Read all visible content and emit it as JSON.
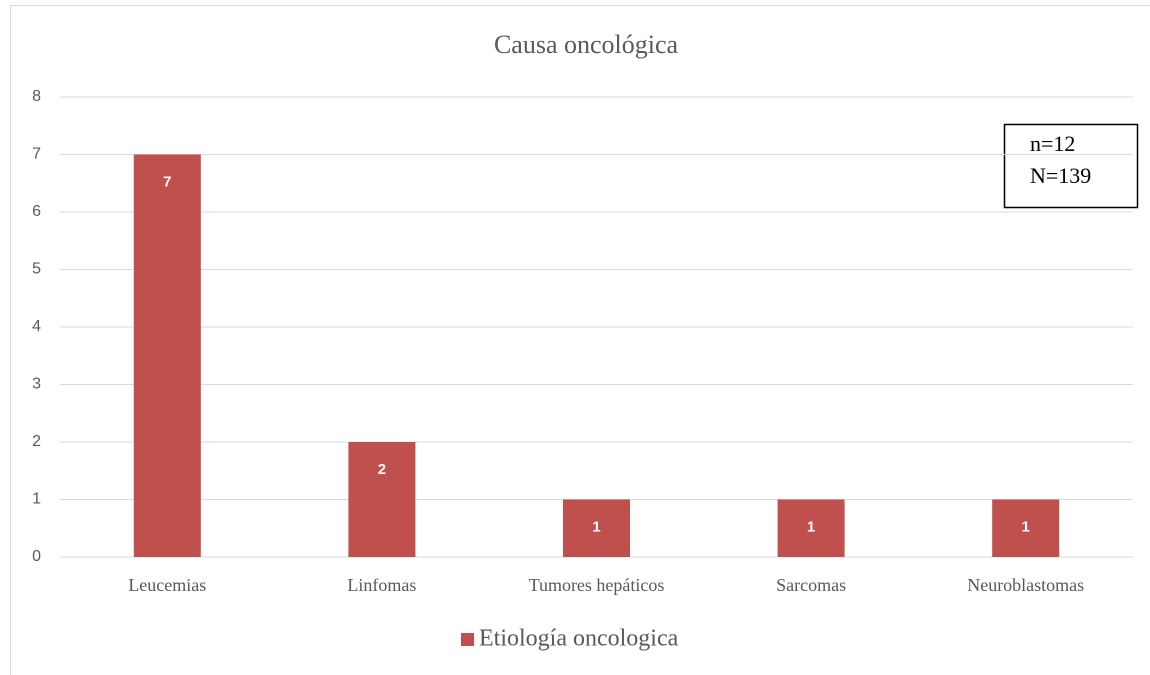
{
  "chart_data": {
    "type": "bar",
    "title": "Causa oncológica",
    "categories": [
      "Leucemias",
      "Linfomas",
      "Tumores hepáticos",
      "Sarcomas",
      "Neuroblastomas"
    ],
    "series": [
      {
        "name": "Etiología oncologica",
        "color": "#c0504d",
        "values": [
          7,
          2,
          1,
          1,
          1
        ]
      }
    ],
    "ylim": [
      0,
      8
    ],
    "yticks": [
      0,
      1,
      2,
      3,
      4,
      5,
      6,
      7,
      8
    ],
    "grid": true,
    "legend": "bottom",
    "annotations": [
      "n=12",
      "N=139"
    ]
  }
}
